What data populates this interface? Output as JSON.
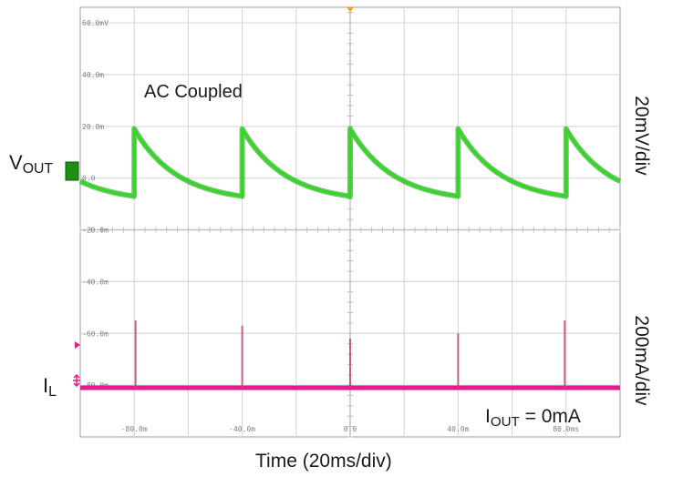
{
  "chart_data": {
    "type": "line",
    "title": "",
    "xlabel": "Time (20ms/div)",
    "annotation": "AC Coupled",
    "x_ticks": [
      "-80.0m",
      "-40.0m",
      "0.0",
      "40.0m",
      "80.0ms"
    ],
    "y_ticks": [
      "60.0mV",
      "40.0m",
      "20.0m",
      "0.0",
      "-20.0m",
      "-40.0m",
      "-60.0m",
      "-80.0m"
    ],
    "xlim_ms": [
      -100,
      100
    ],
    "grid": true,
    "channels": {
      "vout": {
        "label_main": "V",
        "label_sub": "OUT",
        "scale": "20mV/div",
        "color": "#36d628"
      },
      "il": {
        "label_main": "I",
        "label_sub": "L",
        "scale": "200mA/div",
        "color": "#e8198c"
      }
    },
    "iout": {
      "main": "I",
      "sub": "OUT",
      "value": "= 0mA"
    },
    "series": [
      {
        "name": "VOUT",
        "x_ms": [
          -100,
          -80,
          -80,
          -60,
          -40,
          -40,
          -20,
          0,
          0,
          20,
          40,
          40,
          60,
          80,
          80,
          100
        ],
        "y_mV": [
          -3,
          -7,
          19,
          3,
          -7,
          19,
          3,
          -7,
          19,
          3,
          -7,
          19,
          3,
          -7,
          19,
          3
        ]
      },
      {
        "name": "IL",
        "spike_times_ms": [
          -79.5,
          -40,
          0,
          40,
          79.5
        ],
        "spike_peak_mV_equiv": [
          -55,
          -57,
          -62,
          -60,
          -55
        ],
        "baseline_mV_equiv": -81
      }
    ]
  }
}
